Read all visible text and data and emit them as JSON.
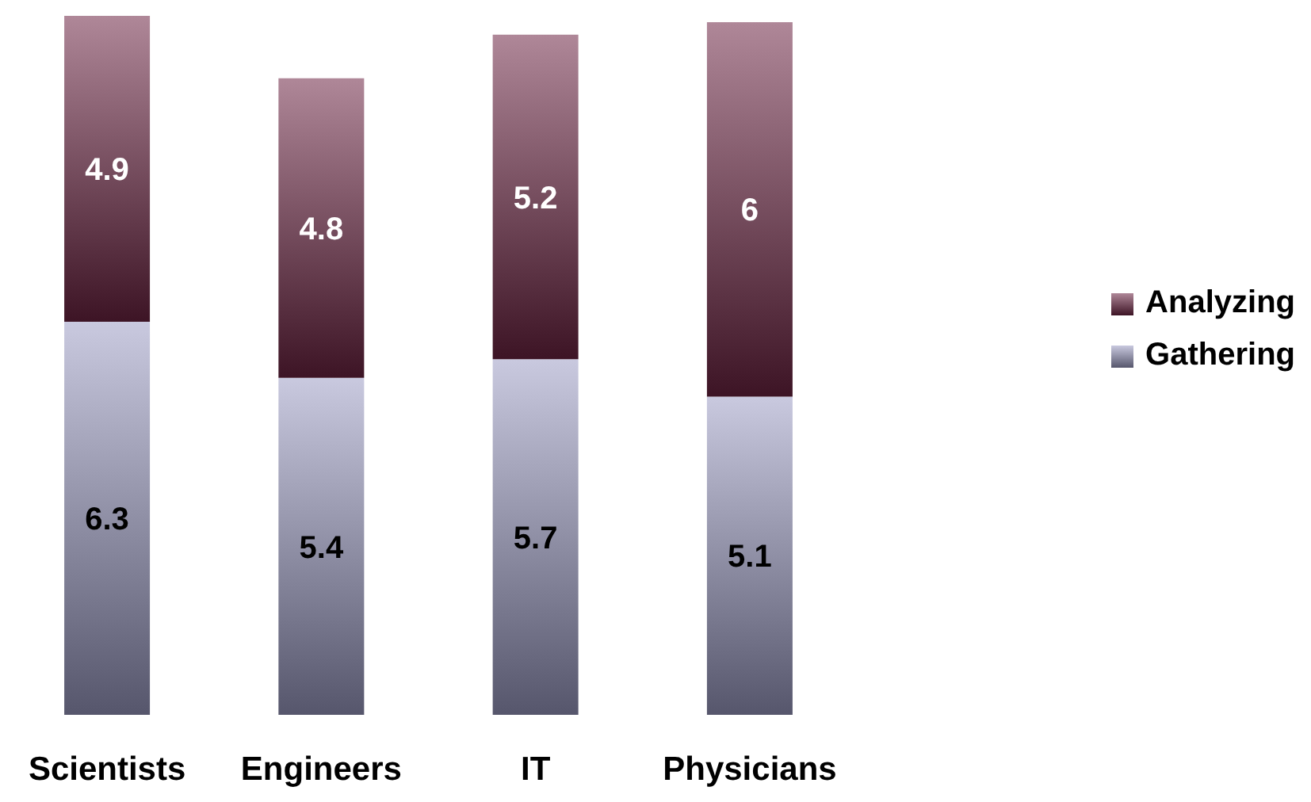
{
  "chart_data": {
    "type": "bar",
    "stacked": true,
    "categories": [
      "Scientists",
      "Engineers",
      "IT",
      "Physicians"
    ],
    "series": [
      {
        "name": "Gathering",
        "color": "#9c9cc4",
        "values": [
          6.3,
          5.4,
          5.7,
          5.1
        ]
      },
      {
        "name": "Analyzing",
        "color": "#6e2444",
        "values": [
          4.9,
          4.8,
          5.2,
          6
        ]
      }
    ],
    "ylim": [
      0,
      11.2
    ],
    "tick_labels": "x",
    "data_labels": true,
    "legend": "right",
    "grid": false
  }
}
